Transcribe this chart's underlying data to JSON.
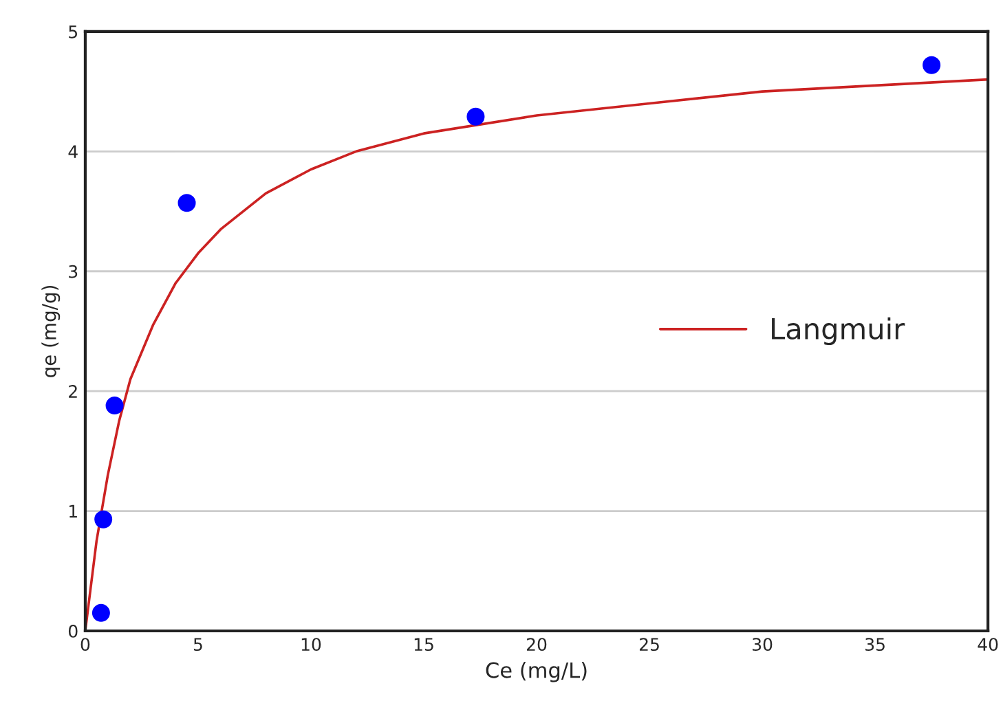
{
  "chart_data": {
    "type": "scatter",
    "xlabel": "Ce (mg/L)",
    "ylabel": "qe (mg/g)",
    "xlim": [
      0,
      40
    ],
    "xticks": [
      0,
      5,
      10,
      15,
      20,
      25,
      30,
      35,
      40
    ],
    "ylim": [
      0,
      5
    ],
    "yticks": [
      0,
      1,
      2,
      3,
      4,
      5
    ],
    "grid": "y",
    "legend": "right",
    "series": [
      {
        "marker": "circle",
        "color": "#0000ff",
        "x": [
          0.7,
          0.8,
          1.3,
          4.5,
          17.3,
          37.5
        ],
        "values": [
          0.15,
          0.93,
          1.88,
          3.57,
          4.29,
          4.72
        ]
      },
      {
        "type": "line",
        "name": "Langmuir",
        "color": "#cc2222",
        "marker": "none",
        "line_style": "solid",
        "x": [
          0,
          0.5,
          1,
          1.5,
          2,
          3,
          4,
          5,
          6,
          8,
          10,
          12,
          15,
          20,
          25,
          30,
          35,
          40
        ],
        "values": [
          0,
          0.75,
          1.3,
          1.75,
          2.1,
          2.55,
          2.9,
          3.15,
          3.35,
          3.65,
          3.85,
          4.0,
          4.15,
          4.3,
          4.4,
          4.5,
          4.55,
          4.6
        ]
      }
    ]
  }
}
